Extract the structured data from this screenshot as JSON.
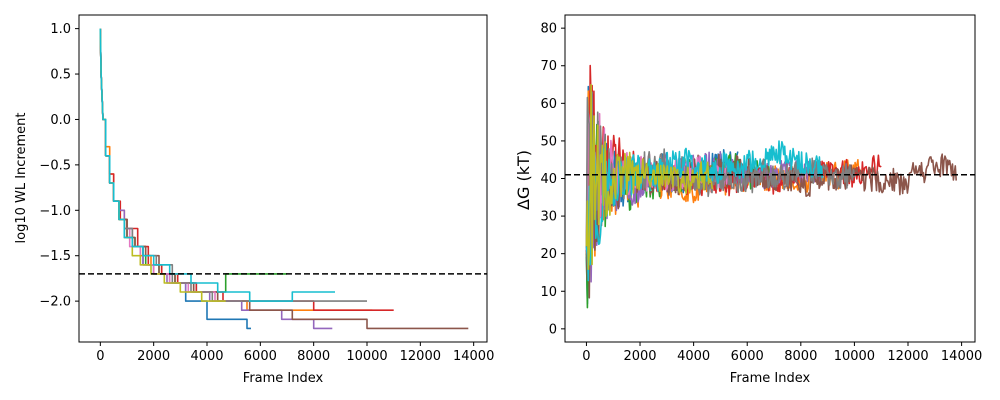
{
  "chart_data": [
    {
      "type": "line",
      "title": "",
      "xlabel": "Frame Index",
      "ylabel": "log10 WL Increment",
      "xlim": [
        -800,
        14500
      ],
      "ylim": [
        -2.45,
        1.15
      ],
      "xticks": [
        0,
        2000,
        4000,
        6000,
        8000,
        10000,
        12000,
        14000
      ],
      "yticks": [
        1.0,
        0.5,
        0.0,
        -0.5,
        -1.0,
        -1.5,
        -2.0
      ],
      "ytick_labels": [
        "1.0",
        "0.5",
        "0.0",
        "−0.5",
        "−1.0",
        "−1.5",
        "−2.0"
      ],
      "reference_line": {
        "y": -1.7,
        "style": "dashed",
        "color": "#000000"
      },
      "grid": false,
      "step_style": "staircase",
      "series": [
        {
          "color": "#1f77b4",
          "x": [
            0,
            30,
            100,
            200,
            350,
            500,
            700,
            900,
            1200,
            1600,
            2000,
            2600,
            3200,
            4000,
            5500,
            5650
          ],
          "values": [
            1.0,
            0.5,
            0.0,
            -0.4,
            -0.7,
            -0.9,
            -1.1,
            -1.3,
            -1.4,
            -1.6,
            -1.7,
            -1.8,
            -2.0,
            -2.2,
            -2.3,
            -2.3
          ]
        },
        {
          "color": "#ff7f0e",
          "x": [
            0,
            30,
            100,
            200,
            350,
            500,
            700,
            900,
            1200,
            1500,
            1900,
            2300,
            2900,
            3500,
            4400,
            5500,
            7000,
            10200
          ],
          "values": [
            1.0,
            0.5,
            0.0,
            -0.3,
            -0.6,
            -0.9,
            -1.0,
            -1.2,
            -1.4,
            -1.5,
            -1.6,
            -1.7,
            -1.8,
            -1.9,
            -2.0,
            -2.1,
            -2.1,
            -2.1
          ]
        },
        {
          "color": "#2ca02c",
          "x": [
            0,
            30,
            100,
            200,
            350,
            500,
            700,
            1000,
            1300,
            1700,
            2200,
            2800,
            3600,
            4700,
            7000
          ],
          "values": [
            1.0,
            0.5,
            0.0,
            -0.4,
            -0.7,
            -0.9,
            -1.1,
            -1.3,
            -1.4,
            -1.6,
            -1.7,
            -1.8,
            -1.9,
            -1.7,
            -1.7
          ]
        },
        {
          "color": "#d62728",
          "x": [
            0,
            30,
            100,
            200,
            350,
            500,
            750,
            1000,
            1400,
            1800,
            2300,
            2900,
            3600,
            4600,
            6000,
            8000,
            10000,
            11000
          ],
          "values": [
            1.0,
            0.5,
            0.0,
            -0.4,
            -0.6,
            -0.9,
            -1.1,
            -1.2,
            -1.4,
            -1.6,
            -1.7,
            -1.8,
            -1.9,
            -2.0,
            -2.0,
            -2.1,
            -2.1,
            -2.1
          ]
        },
        {
          "color": "#9467bd",
          "x": [
            0,
            30,
            100,
            200,
            350,
            500,
            700,
            900,
            1200,
            1600,
            2000,
            2500,
            3200,
            4100,
            5300,
            6800,
            8000,
            8700
          ],
          "values": [
            1.0,
            0.5,
            0.0,
            -0.4,
            -0.7,
            -0.9,
            -1.0,
            -1.2,
            -1.4,
            -1.6,
            -1.7,
            -1.8,
            -1.9,
            -2.0,
            -2.1,
            -2.2,
            -2.3,
            -2.3
          ]
        },
        {
          "color": "#8c564b",
          "x": [
            0,
            30,
            100,
            200,
            350,
            500,
            700,
            1000,
            1300,
            1700,
            2200,
            2800,
            3500,
            4400,
            5600,
            7200,
            10000,
            13800
          ],
          "values": [
            1.0,
            0.5,
            0.0,
            -0.4,
            -0.7,
            -0.9,
            -1.1,
            -1.3,
            -1.4,
            -1.5,
            -1.7,
            -1.8,
            -1.9,
            -2.0,
            -2.1,
            -2.2,
            -2.3,
            -2.3
          ]
        },
        {
          "color": "#e377c2",
          "x": [
            0,
            30,
            100,
            200,
            350,
            500,
            700,
            900,
            1100,
            1500,
            2000,
            2600,
            3300,
            4300,
            5300
          ],
          "values": [
            1.0,
            0.5,
            0.0,
            -0.4,
            -0.7,
            -0.9,
            -1.1,
            -1.2,
            -1.4,
            -1.6,
            -1.7,
            -1.8,
            -1.9,
            -2.0,
            -2.0
          ]
        },
        {
          "color": "#7f7f7f",
          "x": [
            0,
            30,
            100,
            200,
            350,
            500,
            700,
            900,
            1200,
            1600,
            2100,
            2700,
            3400,
            4200,
            5500,
            7000,
            10000
          ],
          "values": [
            1.0,
            0.5,
            0.0,
            -0.4,
            -0.7,
            -0.9,
            -1.1,
            -1.2,
            -1.4,
            -1.5,
            -1.6,
            -1.8,
            -1.9,
            -2.0,
            -2.0,
            -2.0,
            -2.0
          ]
        },
        {
          "color": "#bcbd22",
          "x": [
            0,
            30,
            100,
            200,
            350,
            500,
            700,
            900,
            1200,
            1500,
            1900,
            2400,
            3000,
            3800,
            4700
          ],
          "values": [
            1.0,
            0.5,
            0.0,
            -0.4,
            -0.7,
            -0.9,
            -1.1,
            -1.3,
            -1.5,
            -1.6,
            -1.7,
            -1.8,
            -1.9,
            -2.0,
            -2.0
          ]
        },
        {
          "color": "#17becf",
          "x": [
            0,
            30,
            100,
            200,
            350,
            500,
            700,
            900,
            1200,
            1600,
            2000,
            2600,
            3400,
            4400,
            5600,
            7200,
            8800
          ],
          "values": [
            1.0,
            0.5,
            0.0,
            -0.4,
            -0.7,
            -0.9,
            -1.1,
            -1.3,
            -1.4,
            -1.5,
            -1.6,
            -1.7,
            -1.8,
            -1.9,
            -2.0,
            -1.9,
            -1.9
          ]
        }
      ]
    },
    {
      "type": "line",
      "title": "",
      "xlabel": "Frame Index",
      "ylabel": "ΔG (kT)",
      "xlim": [
        -800,
        14500
      ],
      "ylim": [
        -3.5,
        83.5
      ],
      "xticks": [
        0,
        2000,
        4000,
        6000,
        8000,
        10000,
        12000,
        14000
      ],
      "yticks": [
        0,
        10,
        20,
        30,
        40,
        50,
        60,
        70,
        80
      ],
      "reference_line": {
        "y": 41,
        "style": "dashed",
        "color": "#000000"
      },
      "grid": false,
      "noisy_series": [
        {
          "color": "#1f77b4",
          "length": 5650,
          "seed": 11
        },
        {
          "color": "#ff7f0e",
          "length": 10200,
          "seed": 23
        },
        {
          "color": "#2ca02c",
          "length": 7000,
          "seed": 37
        },
        {
          "color": "#d62728",
          "length": 11000,
          "seed": 41
        },
        {
          "color": "#9467bd",
          "length": 8700,
          "seed": 53
        },
        {
          "color": "#8c564b",
          "length": 13800,
          "seed": 67
        },
        {
          "color": "#e377c2",
          "length": 5300,
          "seed": 71
        },
        {
          "color": "#7f7f7f",
          "length": 10000,
          "seed": 83
        },
        {
          "color": "#17becf",
          "length": 8800,
          "seed": 97
        },
        {
          "color": "#bcbd22",
          "length": 4700,
          "seed": 101
        }
      ],
      "converged_value": 41,
      "initial_spread": [
        0,
        80
      ]
    }
  ]
}
